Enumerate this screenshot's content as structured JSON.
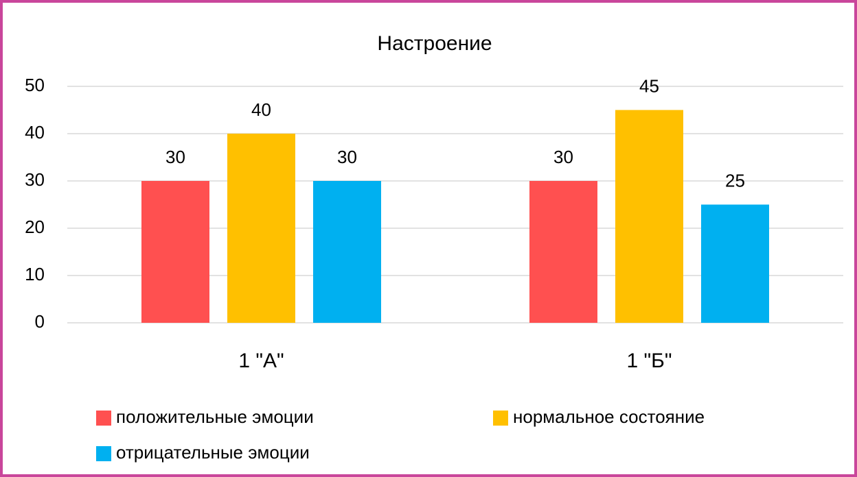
{
  "chart_data": {
    "type": "bar",
    "title": "Настроение",
    "categories": [
      "1 \"А\"",
      "1 \"Б\""
    ],
    "series": [
      {
        "name": "положительные эмоции",
        "color": "#ff5050",
        "values": [
          30,
          30
        ]
      },
      {
        "name": "нормальное состояние",
        "color": "#ffc000",
        "values": [
          40,
          45
        ]
      },
      {
        "name": "отрицательные эмоции",
        "color": "#00b0f0",
        "values": [
          30,
          25
        ]
      }
    ],
    "ylim": [
      0,
      50
    ],
    "yticks": [
      0,
      10,
      20,
      30,
      40,
      50
    ],
    "grid": true,
    "legend": "bottom"
  }
}
